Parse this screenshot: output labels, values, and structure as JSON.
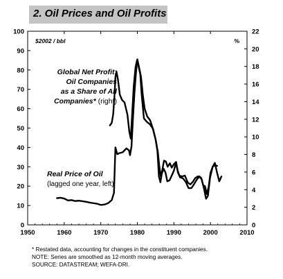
{
  "title": "2. Oil Prices and Oil Profits",
  "chart_data": {
    "type": "line",
    "left_axis_unit": "$2002 / bbl",
    "right_axis_unit": "%",
    "x_ticks": [
      "1950",
      "1960",
      "1970",
      "1980",
      "1990",
      "2000",
      "2010"
    ],
    "x_range": [
      1950,
      2010
    ],
    "left_ticks": [
      "0",
      "10",
      "20",
      "30",
      "40",
      "50",
      "60",
      "70",
      "80",
      "90",
      "100"
    ],
    "left_range": [
      0,
      100
    ],
    "right_ticks": [
      "0",
      "2",
      "4",
      "6",
      "8",
      "10",
      "12",
      "14",
      "16",
      "18",
      "20",
      "22"
    ],
    "right_range": [
      0,
      22
    ],
    "annotations": {
      "profit_label": [
        "Global Net Profit:",
        "Oil Companies",
        "as a Share of All",
        "Companies* (right)"
      ],
      "price_label_line1": "Real Price of Oil",
      "price_label_line2": "(lagged one year, left)"
    },
    "series": [
      {
        "axis": "right",
        "stroke": "#000000",
        "points": [
          [
            1972.5,
            11.3
          ],
          [
            1973.0,
            11.6
          ],
          [
            1973.4,
            12.6
          ],
          [
            1973.8,
            15.0
          ],
          [
            1974.0,
            16.8
          ],
          [
            1974.3,
            17.4
          ],
          [
            1974.7,
            16.5
          ],
          [
            1975.2,
            14.8
          ],
          [
            1975.8,
            14.2
          ],
          [
            1976.5,
            13.9
          ],
          [
            1977.3,
            12.5
          ],
          [
            1977.8,
            10.6
          ],
          [
            1978.2,
            9.8
          ],
          [
            1978.6,
            12.7
          ],
          [
            1979.0,
            15.7
          ],
          [
            1979.5,
            17.9
          ],
          [
            1979.9,
            18.7
          ],
          [
            1980.3,
            18.1
          ],
          [
            1980.8,
            17.1
          ],
          [
            1981.2,
            14.7
          ],
          [
            1981.8,
            12.1
          ],
          [
            1982.6,
            11.7
          ],
          [
            1983.5,
            11.4
          ],
          [
            1984.3,
            10.9
          ],
          [
            1985.0,
            9.7
          ],
          [
            1985.6,
            8.3
          ],
          [
            1986.0,
            6.7
          ],
          [
            1986.4,
            5.5
          ],
          [
            1986.8,
            6.2
          ],
          [
            1987.3,
            7.3
          ],
          [
            1987.8,
            7.2
          ],
          [
            1988.3,
            6.6
          ],
          [
            1988.9,
            7.0
          ],
          [
            1989.4,
            6.5
          ],
          [
            1990.0,
            6.9
          ],
          [
            1990.5,
            7.1
          ],
          [
            1991.0,
            6.2
          ],
          [
            1991.5,
            5.6
          ],
          [
            1992.2,
            5.5
          ],
          [
            1993.0,
            5.6
          ],
          [
            1993.8,
            4.8
          ],
          [
            1994.5,
            4.6
          ],
          [
            1995.2,
            4.9
          ],
          [
            1995.8,
            5.3
          ],
          [
            1996.5,
            5.5
          ],
          [
            1997.0,
            5.5
          ],
          [
            1997.5,
            5.3
          ],
          [
            1998.0,
            4.5
          ],
          [
            1998.5,
            4.4
          ],
          [
            1999.0,
            3.5
          ],
          [
            1999.5,
            4.3
          ],
          [
            2000.0,
            5.9
          ],
          [
            2000.6,
            6.6
          ],
          [
            2001.2,
            6.8
          ],
          [
            2001.8,
            6.7
          ]
        ]
      },
      {
        "axis": "left",
        "stroke": "#000000",
        "points": [
          [
            1958.0,
            13.8
          ],
          [
            1959.0,
            14.0
          ],
          [
            1960.0,
            13.6
          ],
          [
            1961.0,
            12.6
          ],
          [
            1962.0,
            12.8
          ],
          [
            1963.0,
            12.3
          ],
          [
            1964.0,
            12.5
          ],
          [
            1965.0,
            12.2
          ],
          [
            1966.0,
            11.9
          ],
          [
            1967.0,
            11.5
          ],
          [
            1968.0,
            11.2
          ],
          [
            1969.0,
            10.9
          ],
          [
            1970.0,
            10.3
          ],
          [
            1971.0,
            10.5
          ],
          [
            1972.0,
            11.2
          ],
          [
            1973.0,
            12.8
          ],
          [
            1973.6,
            16.5
          ],
          [
            1974.0,
            40.0
          ],
          [
            1974.5,
            36.5
          ],
          [
            1975.0,
            37.0
          ],
          [
            1976.0,
            37.5
          ],
          [
            1977.0,
            39.5
          ],
          [
            1977.7,
            38.5
          ],
          [
            1978.0,
            36.0
          ],
          [
            1978.4,
            40.5
          ],
          [
            1978.8,
            55.0
          ],
          [
            1979.2,
            68.0
          ],
          [
            1979.6,
            78.0
          ],
          [
            1980.0,
            85.5
          ],
          [
            1980.4,
            82.0
          ],
          [
            1981.0,
            76.5
          ],
          [
            1981.5,
            67.0
          ],
          [
            1982.0,
            60.0
          ],
          [
            1982.7,
            56.0
          ],
          [
            1983.5,
            54.0
          ],
          [
            1984.2,
            50.0
          ],
          [
            1985.0,
            44.0
          ],
          [
            1985.5,
            38.0
          ],
          [
            1985.9,
            25.0
          ],
          [
            1986.3,
            22.0
          ],
          [
            1986.7,
            26.5
          ],
          [
            1987.2,
            29.0
          ],
          [
            1987.7,
            27.0
          ],
          [
            1988.2,
            22.5
          ],
          [
            1988.8,
            23.0
          ],
          [
            1989.3,
            25.0
          ],
          [
            1990.0,
            28.0
          ],
          [
            1990.6,
            32.5
          ],
          [
            1991.1,
            27.0
          ],
          [
            1991.7,
            24.5
          ],
          [
            1992.5,
            24.0
          ],
          [
            1993.3,
            22.0
          ],
          [
            1994.0,
            19.0
          ],
          [
            1994.8,
            19.0
          ],
          [
            1995.5,
            21.0
          ],
          [
            1996.3,
            23.5
          ],
          [
            1997.0,
            25.0
          ],
          [
            1997.6,
            23.5
          ],
          [
            1998.2,
            19.0
          ],
          [
            1998.8,
            13.5
          ],
          [
            1999.3,
            15.0
          ],
          [
            1999.9,
            24.5
          ],
          [
            2000.6,
            30.0
          ],
          [
            2001.2,
            32.0
          ],
          [
            2001.8,
            27.0
          ],
          [
            2002.4,
            22.5
          ],
          [
            2003.0,
            25.0
          ]
        ]
      }
    ]
  },
  "footnotes": [
    "* Restated data, accounting for changes in the constituent companies.",
    "NOTE: Series are smoothed as 12-month moving averages.",
    "SOURCE: DATASTREAM; WEFA-DRI."
  ]
}
